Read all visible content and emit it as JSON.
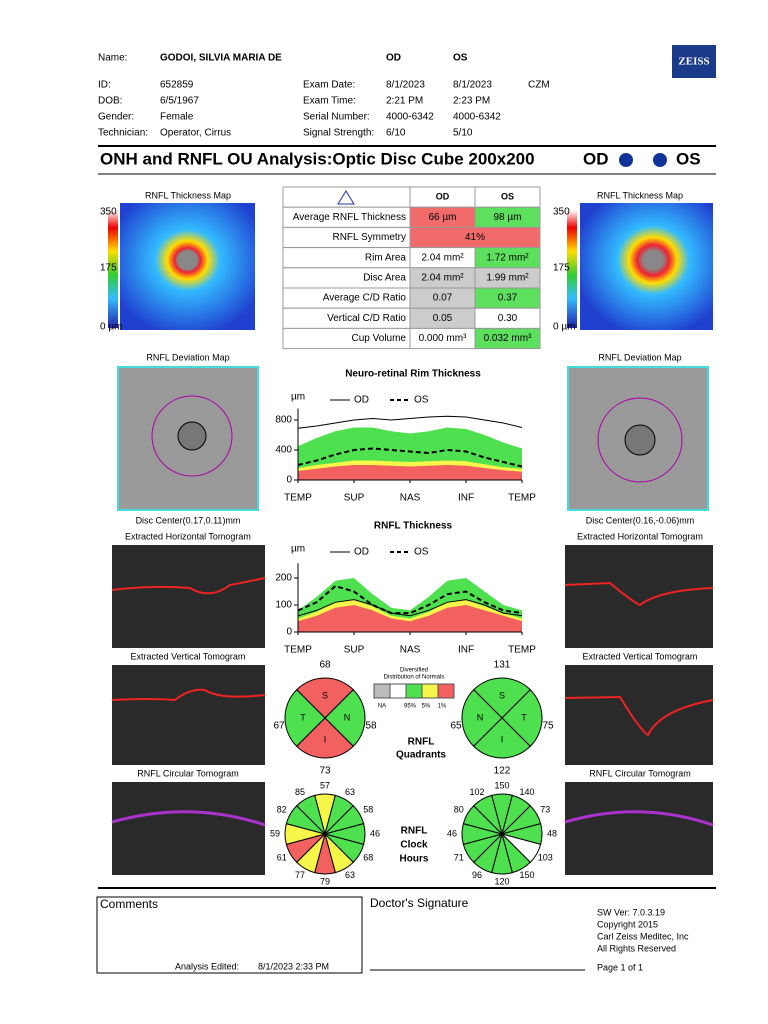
{
  "header": {
    "name": [
      "Name:",
      "GODOI, SILVIA MARIA DE"
    ],
    "eye_labels": [
      "OD",
      "OS"
    ],
    "left_rows": [
      [
        "ID:",
        "652859"
      ],
      [
        "DOB:",
        "6/5/1967"
      ],
      [
        "Gender:",
        "Female"
      ],
      [
        "Technician:",
        "Operator, Cirrus"
      ]
    ],
    "exam_rows": [
      [
        "Exam Date:",
        "8/1/2023",
        "8/1/2023",
        "CZM"
      ],
      [
        "Exam Time:",
        "2:21 PM",
        "2:23 PM"
      ],
      [
        "Serial Number:",
        "4000-6342",
        "4000-6342"
      ],
      [
        "Signal Strength:",
        "6/10",
        "5/10"
      ]
    ],
    "logo": "ZEISS"
  },
  "title": {
    "text": "ONH and RNFL OU Analysis:Optic Disc Cube 200x200",
    "od": "OD",
    "os": "OS"
  },
  "od_panel": {
    "map_title": "RNFL Thickness Map",
    "scale": [
      350,
      175,
      "0 µm"
    ],
    "deviation_title": "RNFL Deviation Map",
    "disc_center": "Disc Center(0.17,0.11)mm",
    "horiz_title": "Extracted Horizontal Tomogram",
    "vert_title": "Extracted Vertical Tomogram",
    "circ_title": "RNFL Circular Tomogram"
  },
  "os_panel": {
    "map_title": "RNFL Thickness Map",
    "scale": [
      350,
      175,
      "0 µm"
    ],
    "deviation_title": "RNFL Deviation Map",
    "disc_center": "Disc Center(0.16,-0.06)mm",
    "horiz_title": "Extracted Horizontal Tomogram",
    "vert_title": "Extracted Vertical Tomogram",
    "circ_title": "RNFL Circular Tomogram"
  },
  "table": {
    "headers": [
      "OD",
      "OS"
    ],
    "rows": [
      {
        "label": "Average RNFL Thickness",
        "od": "66 µm",
        "os": "98 µm",
        "od_color": "#f26b6b",
        "os_color": "#5de05d"
      },
      {
        "label": "RNFL Symmetry",
        "both": "41%",
        "color": "#f26b6b"
      },
      {
        "label": "Rim Area",
        "od": "2.04 mm²",
        "os": "1.72 mm²",
        "od_color": "#ffffff",
        "os_color": "#5de05d"
      },
      {
        "label": "Disc Area",
        "od": "2.04 mm²",
        "os": "1.99 mm²",
        "od_color": "#cccccc",
        "os_color": "#cccccc"
      },
      {
        "label": "Average C/D Ratio",
        "od": "0.07",
        "os": "0.37",
        "od_color": "#cccccc",
        "os_color": "#5de05d"
      },
      {
        "label": "Vertical C/D Ratio",
        "od": "0.05",
        "os": "0.30",
        "od_color": "#cccccc",
        "os_color": "#ffffff"
      },
      {
        "label": "Cup Volume",
        "od": "0.000 mm³",
        "os": "0.032 mm³",
        "od_color": "#ffffff",
        "os_color": "#5de05d"
      }
    ]
  },
  "rim_chart": {
    "title": "Neuro-retinal Rim Thickness",
    "unit": "µm",
    "xlim": [
      0,
      360
    ],
    "ylim": [
      0,
      900
    ],
    "yticks": [
      0,
      400,
      800
    ],
    "xticks": [
      {
        "value": 0,
        "label": "TEMP"
      },
      {
        "value": 90,
        "label": "SUP"
      },
      {
        "value": 180,
        "label": "NAS"
      },
      {
        "value": 270,
        "label": "INF"
      },
      {
        "value": 360,
        "label": "TEMP"
      }
    ],
    "x": [
      0,
      30,
      60,
      90,
      120,
      150,
      180,
      210,
      240,
      270,
      300,
      330,
      360
    ],
    "bands": [
      {
        "color": "#4ee04e",
        "values": [
          450,
          560,
          650,
          700,
          700,
          650,
          620,
          650,
          700,
          680,
          600,
          500,
          420
        ]
      },
      {
        "color": "#f5f54a",
        "values": [
          160,
          200,
          230,
          260,
          260,
          250,
          240,
          250,
          260,
          250,
          210,
          170,
          150
        ]
      },
      {
        "color": "#f26060",
        "values": [
          120,
          150,
          180,
          200,
          200,
          190,
          180,
          190,
          200,
          190,
          160,
          130,
          110
        ]
      }
    ],
    "series": [
      {
        "name": "OD",
        "style": "solid",
        "values": [
          690,
          720,
          760,
          800,
          820,
          800,
          820,
          840,
          850,
          840,
          800,
          760,
          700
        ]
      },
      {
        "name": "OS",
        "style": "dashed",
        "values": [
          200,
          260,
          340,
          400,
          420,
          400,
          380,
          360,
          400,
          380,
          300,
          240,
          180
        ]
      }
    ]
  },
  "rnfl_chart": {
    "title": "RNFL Thickness",
    "unit": "µm",
    "xlim": [
      0,
      360
    ],
    "ylim": [
      0,
      240
    ],
    "yticks": [
      0,
      100,
      200
    ],
    "xticks": [
      {
        "value": 0,
        "label": "TEMP"
      },
      {
        "value": 90,
        "label": "SUP"
      },
      {
        "value": 180,
        "label": "NAS"
      },
      {
        "value": 270,
        "label": "INF"
      },
      {
        "value": 360,
        "label": "TEMP"
      }
    ],
    "x": [
      0,
      30,
      60,
      90,
      120,
      150,
      180,
      210,
      240,
      270,
      300,
      330,
      360
    ],
    "bands": [
      {
        "color": "#4ee04e",
        "values": [
          80,
          130,
          190,
          200,
          140,
          90,
          80,
          130,
          190,
          200,
          150,
          100,
          80
        ]
      },
      {
        "color": "#f5f54a",
        "values": [
          50,
          75,
          110,
          120,
          95,
          60,
          50,
          75,
          110,
          120,
          95,
          70,
          50
        ]
      },
      {
        "color": "#f26060",
        "values": [
          40,
          60,
          90,
          100,
          80,
          50,
          40,
          60,
          90,
          100,
          80,
          60,
          40
        ]
      }
    ],
    "series": [
      {
        "name": "OD",
        "style": "solid",
        "values": [
          60,
          80,
          110,
          120,
          100,
          70,
          60,
          80,
          110,
          120,
          100,
          70,
          60
        ]
      },
      {
        "name": "OS",
        "style": "dashed",
        "values": [
          80,
          110,
          170,
          150,
          100,
          70,
          70,
          100,
          140,
          150,
          110,
          80,
          70
        ]
      }
    ]
  },
  "normals_legend": {
    "title": [
      "Diversified",
      "Distribution of Normals"
    ],
    "boxes": [
      "#bbbbbb",
      "#ffffff",
      "#4ee04e",
      "#f5f54a",
      "#f26060"
    ],
    "labels": [
      "NA",
      "95%",
      "5%",
      "1%"
    ]
  },
  "quadrants": {
    "label": [
      "RNFL",
      "Quadrants"
    ],
    "od": [
      {
        "letter": "S",
        "value": 68,
        "color": "#f26060"
      },
      {
        "letter": "T",
        "value": 67,
        "color": "#4ee04e"
      },
      {
        "letter": "N",
        "value": 58,
        "color": "#4ee04e"
      },
      {
        "letter": "I",
        "value": 73,
        "color": "#f26060"
      }
    ],
    "os": [
      {
        "letter": "S",
        "value": 131,
        "color": "#4ee04e"
      },
      {
        "letter": "N",
        "value": 65,
        "color": "#4ee04e"
      },
      {
        "letter": "T",
        "value": 75,
        "color": "#4ee04e"
      },
      {
        "letter": "I",
        "value": 122,
        "color": "#4ee04e"
      }
    ]
  },
  "clock": {
    "label": [
      "RNFL",
      "Clock",
      "Hours"
    ],
    "od": [
      {
        "value": 57,
        "color": "#f5f54a"
      },
      {
        "value": 63,
        "color": "#4ee04e"
      },
      {
        "value": 58,
        "color": "#4ee04e"
      },
      {
        "value": 46,
        "color": "#4ee04e"
      },
      {
        "value": 68,
        "color": "#4ee04e"
      },
      {
        "value": 63,
        "color": "#f5f54a"
      },
      {
        "value": 79,
        "color": "#f26060"
      },
      {
        "value": 77,
        "color": "#f5f54a"
      },
      {
        "value": 61,
        "color": "#f26060"
      },
      {
        "value": 59,
        "color": "#f5f54a"
      },
      {
        "value": 82,
        "color": "#4ee04e"
      },
      {
        "value": 85,
        "color": "#4ee04e"
      }
    ],
    "os": [
      {
        "value": 150,
        "color": "#4ee04e"
      },
      {
        "value": 140,
        "color": "#4ee04e"
      },
      {
        "value": 73,
        "color": "#4ee04e"
      },
      {
        "value": 48,
        "color": "#4ee04e"
      },
      {
        "value": 103,
        "color": "#ffffff"
      },
      {
        "value": 150,
        "color": "#4ee04e"
      },
      {
        "value": 120,
        "color": "#4ee04e"
      },
      {
        "value": 96,
        "color": "#4ee04e"
      },
      {
        "value": 71,
        "color": "#4ee04e"
      },
      {
        "value": 46,
        "color": "#4ee04e"
      },
      {
        "value": 80,
        "color": "#4ee04e"
      },
      {
        "value": 102,
        "color": "#4ee04e"
      }
    ]
  },
  "footer": {
    "comments": "Comments",
    "signature": "Doctor's Signature",
    "edited_label": "Analysis Edited:",
    "edited": "8/1/2023 2:33 PM",
    "info": [
      "SW Ver: 7.0.3.19",
      "Copyright 2015",
      "Carl Zeiss Meditec, Inc",
      "All Rights Reserved"
    ],
    "page": "Page 1 of 1"
  }
}
